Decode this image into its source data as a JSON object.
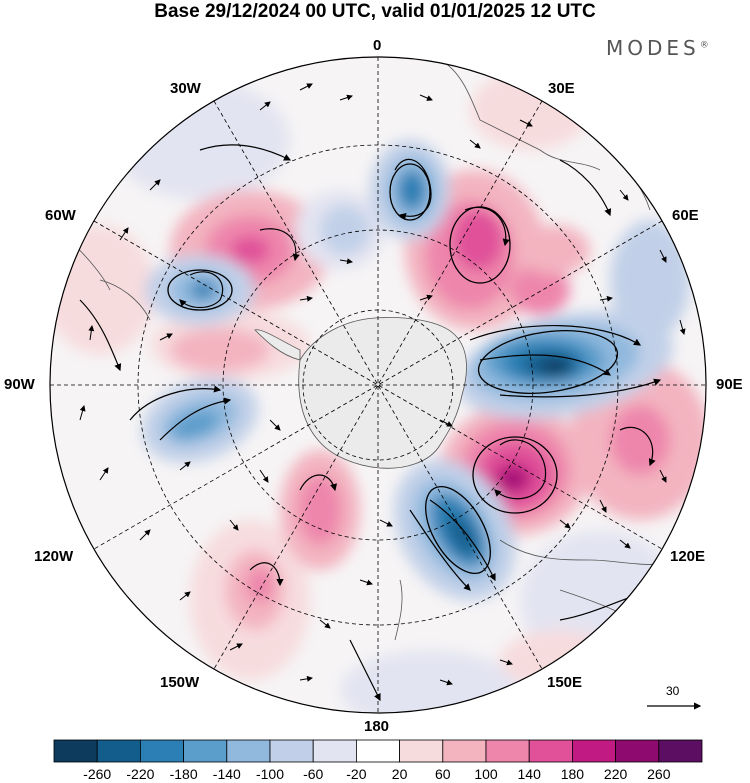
{
  "title": "Base 29/12/2024 00 UTC, valid 01/01/2025 12 UTC",
  "brand": "MODES",
  "brand_mark": "®",
  "longitude_labels": {
    "n0": "0",
    "n30w": "30W",
    "n30e": "30E",
    "n60w": "60W",
    "n60e": "60E",
    "n90w": "90W",
    "n90e": "90E",
    "n120w": "120W",
    "n120e": "120E",
    "n150w": "150W",
    "n150e": "150E",
    "n180": "180"
  },
  "reference_vector": "30",
  "colorbar": {
    "colors": [
      "#0c3b5e",
      "#135d8c",
      "#2c7fb4",
      "#5b9dcb",
      "#91b9de",
      "#c1d0e8",
      "#e3e4f1",
      "#ffffff",
      "#f7dcde",
      "#f3b4c0",
      "#ee86ac",
      "#e0519a",
      "#c11a82",
      "#8e0a6f",
      "#5b0e62"
    ],
    "labels": [
      "-260",
      "-220",
      "-180",
      "-140",
      "-100",
      "-60",
      "-20",
      "20",
      "60",
      "100",
      "140",
      "180",
      "220",
      "260"
    ]
  }
}
